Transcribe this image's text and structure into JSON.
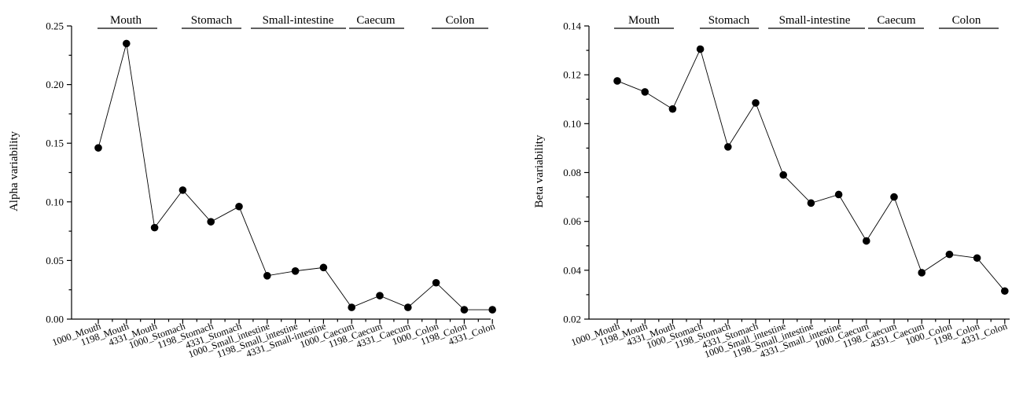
{
  "chart_data": [
    {
      "type": "line",
      "ylabel": "Alpha  variability",
      "ylim": [
        0,
        0.25
      ],
      "yticks": [
        "0.00",
        "0.05",
        "0.10",
        "0.15",
        "0.20",
        "0.25"
      ],
      "categories": [
        "1000_Mouth",
        "1198_Mouth",
        "4331_Mouth",
        "1000_Stomach",
        "1198_Stomach",
        "4331_Stomach",
        "1000_Small_intestine",
        "1198_Small_intestine",
        "4331_Small-intestine",
        "1000_Caecum",
        "1198_Caecum",
        "4331_Caecum",
        "1000_Colon",
        "1198_Colon",
        "4331_Colon"
      ],
      "values": [
        0.146,
        0.235,
        0.078,
        0.11,
        0.083,
        0.096,
        0.037,
        0.041,
        0.044,
        0.01,
        0.02,
        0.01,
        0.031,
        0.008,
        0.008
      ],
      "regions": [
        "Mouth",
        "Stomach",
        "Small-intestine",
        "Caecum",
        "Colon"
      ],
      "grid": false
    },
    {
      "type": "line",
      "ylabel": "Beta variability",
      "ylim": [
        0.02,
        0.14
      ],
      "yticks": [
        "0.02",
        "0.04",
        "0.06",
        "0.08",
        "0.10",
        "0.12",
        "0.14"
      ],
      "categories": [
        "1000_Mouth",
        "1198_Mouth",
        "4331_Mouth",
        "1000_Stomach",
        "1198_Stomach",
        "4331_Stomach",
        "1000_Small_intestine",
        "1198_Small_intestine",
        "4331_Small_intestine",
        "1000_Caecum",
        "1198_Caecum",
        "4331_Caecum",
        "1000_Colon",
        "1198_Colon",
        "4331_Colon"
      ],
      "values": [
        0.1175,
        0.113,
        0.106,
        0.1305,
        0.0905,
        0.1085,
        0.079,
        0.0675,
        0.071,
        0.052,
        0.07,
        0.039,
        0.0465,
        0.045,
        0.0315
      ],
      "regions": [
        "Mouth",
        "Stomach",
        "Small-intestine",
        "Caecum",
        "Colon"
      ],
      "grid": false
    }
  ]
}
